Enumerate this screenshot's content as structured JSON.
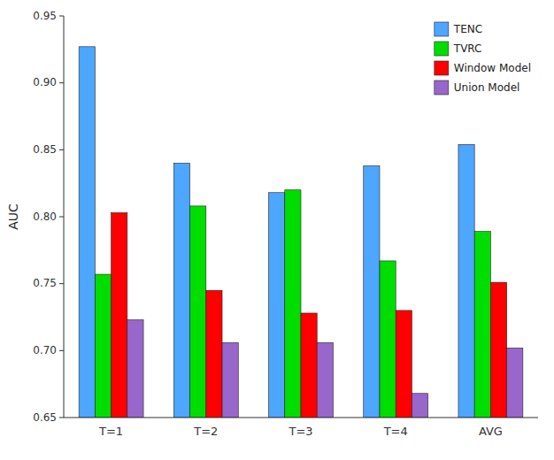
{
  "chart_data": {
    "type": "bar",
    "categories": [
      "T=1",
      "T=2",
      "T=3",
      "T=4",
      "AVG"
    ],
    "series": [
      {
        "name": "TENC",
        "color": "#4DA6FF",
        "values": [
          0.927,
          0.84,
          0.818,
          0.838,
          0.854
        ]
      },
      {
        "name": "TVRC",
        "color": "#00DD00",
        "values": [
          0.757,
          0.808,
          0.82,
          0.767,
          0.789
        ]
      },
      {
        "name": "Window Model",
        "color": "#FF0000",
        "values": [
          0.803,
          0.745,
          0.728,
          0.73,
          0.751
        ]
      },
      {
        "name": "Union Model",
        "color": "#9966CC",
        "values": [
          0.723,
          0.706,
          0.706,
          0.668,
          0.702
        ]
      }
    ],
    "ylabel": "AUC",
    "ylim": [
      0.65,
      0.95
    ],
    "yticks": [
      0.65,
      {
        "value": 0.7,
        "label": "0.70"
      },
      0.75,
      {
        "value": 0.8,
        "label": "0.80"
      },
      0.85,
      {
        "value": 0.9,
        "label": "0.90"
      },
      0.95
    ],
    "grid": false,
    "legend": "upper right"
  }
}
